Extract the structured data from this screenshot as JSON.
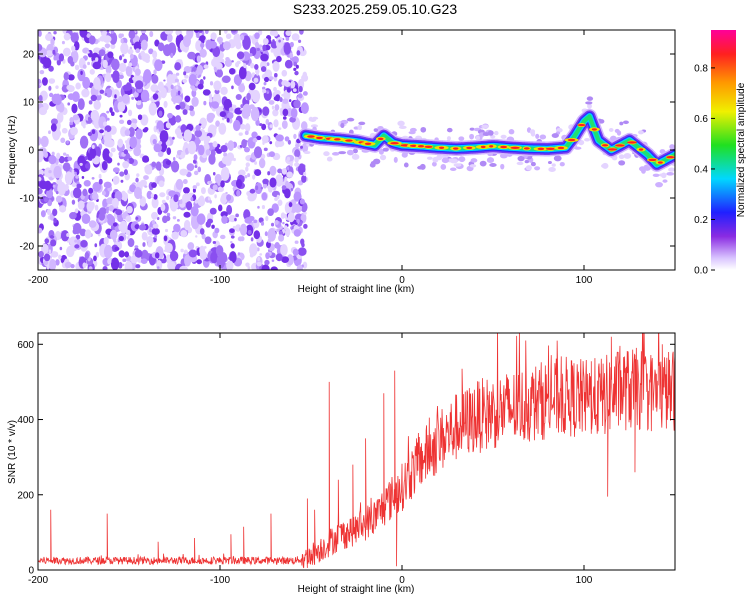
{
  "title": "S233.2025.259.05.10.G23",
  "colors": {
    "signal": "#ee3333",
    "noise": "#9b5cf0",
    "track_core": "#ff2020"
  },
  "chart_data": [
    {
      "type": "heatmap",
      "xlabel": "Height of straight line (km)",
      "ylabel": "Frequency (Hz)",
      "xlim": [
        -200,
        150
      ],
      "ylim": [
        -25,
        25
      ],
      "x_ticks": [
        "-200",
        "-100",
        "0",
        "100"
      ],
      "y_ticks": [
        "-20",
        "-10",
        "0",
        "10",
        "20"
      ],
      "colorbar": {
        "label": "Normalized spectral amplitude",
        "range": [
          0,
          0.95
        ],
        "ticks": [
          "0.0",
          "0.2",
          "0.4",
          "0.6",
          "0.8"
        ],
        "colormap": "rainbow (white-purple-blue-cyan-green-yellow-orange-red-magenta)"
      },
      "noise_region_x": [
        -200,
        -53
      ],
      "ridge": {
        "x": [
          -53,
          -45,
          -35,
          -25,
          -15,
          -10,
          -5,
          0,
          10,
          20,
          30,
          40,
          50,
          60,
          70,
          80,
          90,
          95,
          100,
          103,
          108,
          115,
          125,
          135,
          140,
          145,
          150
        ],
        "freq": [
          3,
          2.5,
          2.2,
          1.8,
          1,
          3,
          1.5,
          1,
          0.8,
          0.5,
          0.3,
          0.5,
          0.8,
          0.5,
          0.3,
          0.2,
          0.5,
          3,
          6,
          7,
          2,
          0,
          2,
          -1,
          -3,
          -2,
          -1
        ]
      }
    },
    {
      "type": "line",
      "xlabel": "Height of straight line (km)",
      "ylabel": "SNR (10 * v/v)",
      "xlim": [
        -200,
        150
      ],
      "ylim": [
        0,
        630
      ],
      "x_ticks": [
        "-200",
        "-100",
        "0",
        "100"
      ],
      "y_ticks": [
        "0",
        "200",
        "400",
        "600"
      ],
      "baseline": {
        "x": [
          -200,
          -60,
          -53,
          -45,
          -35,
          -25,
          -15,
          -8,
          0,
          10,
          20,
          30,
          40,
          50,
          60,
          70,
          80,
          90,
          100,
          110,
          120,
          130,
          140,
          150
        ],
        "y": [
          25,
          25,
          30,
          55,
          90,
          110,
          140,
          180,
          220,
          290,
          340,
          380,
          405,
          420,
          430,
          440,
          455,
          460,
          455,
          460,
          480,
          480,
          470,
          480
        ]
      },
      "spikes": [
        {
          "x": -193,
          "y": 160
        },
        {
          "x": -162,
          "y": 150
        },
        {
          "x": -134,
          "y": 75
        },
        {
          "x": -114,
          "y": 85
        },
        {
          "x": -94,
          "y": 95
        },
        {
          "x": -87,
          "y": 115
        },
        {
          "x": -72,
          "y": 150
        },
        {
          "x": -52,
          "y": 190
        },
        {
          "x": -48,
          "y": 160
        },
        {
          "x": -40,
          "y": 500
        },
        {
          "x": -35,
          "y": 240
        },
        {
          "x": -27,
          "y": 280
        },
        {
          "x": -20,
          "y": 350
        },
        {
          "x": -10,
          "y": 470
        },
        {
          "x": -4,
          "y": 530
        },
        {
          "x": 33,
          "y": 535
        },
        {
          "x": 104,
          "y": 555
        },
        {
          "x": 115,
          "y": 620
        },
        {
          "x": 143,
          "y": 600
        }
      ],
      "dips": [
        {
          "x": -3,
          "y": 10
        },
        {
          "x": 113,
          "y": 195
        },
        {
          "x": 128,
          "y": 260
        }
      ]
    }
  ]
}
